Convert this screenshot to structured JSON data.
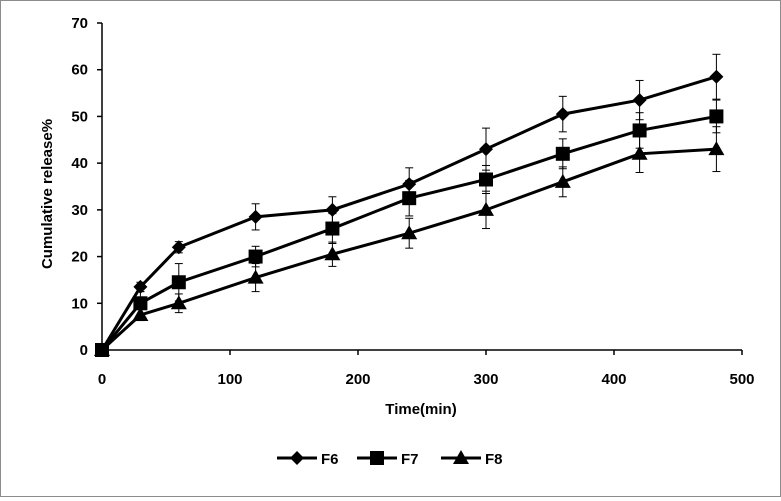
{
  "chart_data": {
    "type": "line",
    "title": "",
    "xlabel": "Time(min)",
    "ylabel": "Cumulative release%",
    "xlim": [
      0,
      500
    ],
    "ylim": [
      0,
      70
    ],
    "xticks": [
      0,
      100,
      200,
      300,
      400,
      500
    ],
    "yticks": [
      0,
      10,
      20,
      30,
      40,
      50,
      60,
      70
    ],
    "grid": false,
    "legend_position": "bottom",
    "x": [
      0,
      30,
      60,
      120,
      180,
      240,
      300,
      360,
      420,
      480
    ],
    "series": [
      {
        "name": "F6",
        "marker": "diamond",
        "values": [
          0,
          13.5,
          22,
          28.5,
          30,
          35.5,
          43,
          50.5,
          53.5,
          58.5
        ],
        "errors": [
          0,
          1.0,
          1.2,
          2.8,
          2.8,
          3.5,
          4.5,
          3.8,
          4.2,
          4.8
        ]
      },
      {
        "name": "F7",
        "marker": "square",
        "values": [
          0,
          10,
          14.5,
          20,
          26,
          32.5,
          36.5,
          42,
          47,
          50
        ],
        "errors": [
          0,
          2.5,
          4.0,
          2.2,
          3.2,
          3.8,
          3.0,
          3.2,
          3.8,
          3.5
        ]
      },
      {
        "name": "F8",
        "marker": "triangle",
        "values": [
          0,
          7.5,
          10,
          15.5,
          20.5,
          25,
          30,
          36,
          42,
          43
        ],
        "errors": [
          0,
          1.2,
          2.0,
          3.0,
          2.6,
          3.2,
          4.0,
          3.2,
          4.0,
          4.8
        ]
      }
    ],
    "color": "#000000"
  }
}
